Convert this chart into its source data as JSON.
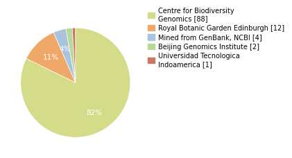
{
  "labels": [
    "Centre for Biodiversity\nGenomics [88]",
    "Royal Botanic Garden Edinburgh [12]",
    "Mined from GenBank, NCBI [4]",
    "Beijing Genomics Institute [2]",
    "Universidad Tecnologica\nIndoamerica [1]"
  ],
  "values": [
    88,
    12,
    4,
    2,
    1
  ],
  "colors": [
    "#d4dc8a",
    "#f0a868",
    "#a8c4dc",
    "#b8d898",
    "#cc7766"
  ],
  "background_color": "#ffffff",
  "legend_fontsize": 7.0,
  "autopct_fontsize": 7.5,
  "startangle": 90
}
